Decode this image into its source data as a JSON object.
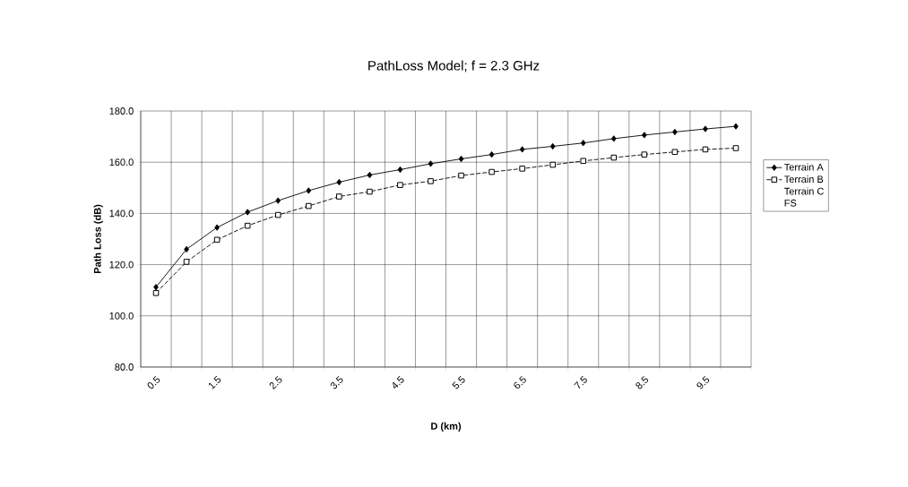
{
  "chart_data": {
    "type": "line",
    "title": "PathLoss Model; f = 2.3 GHz",
    "xlabel": "D (km)",
    "ylabel": "Path Loss (dB)",
    "categories": [
      "0.5",
      null,
      "1.5",
      null,
      "2.5",
      null,
      "3.5",
      null,
      "4.5",
      null,
      "5.5",
      null,
      "6.5",
      null,
      "7.5",
      null,
      "8.5",
      null,
      "9.5",
      null
    ],
    "series": [
      {
        "name": "Terrain A",
        "color": "#000000",
        "marker": "diamond",
        "line_style": "solid",
        "values": [
          111.2,
          126.0,
          134.5,
          140.5,
          145.0,
          148.9,
          152.2,
          155.0,
          157.1,
          159.4,
          161.3,
          163.0,
          165.0,
          166.2,
          167.5,
          169.2,
          170.6,
          171.8,
          173.0,
          174.0
        ]
      },
      {
        "name": "Terrain B",
        "color": "#000000",
        "marker": "square",
        "line_style": "dashed",
        "values": [
          108.9,
          121.1,
          129.7,
          135.2,
          139.4,
          142.9,
          146.6,
          148.5,
          151.1,
          152.6,
          154.8,
          156.2,
          157.5,
          159.0,
          160.5,
          161.8,
          163.0,
          164.0,
          165.0,
          165.5
        ]
      },
      {
        "name": "Terrain C",
        "values": [
          null,
          null,
          null,
          null,
          null,
          null,
          null,
          null,
          null,
          null,
          null,
          null,
          null,
          null,
          null,
          null,
          null,
          null,
          null,
          null
        ]
      },
      {
        "name": "FS",
        "values": [
          null,
          null,
          null,
          null,
          null,
          null,
          null,
          null,
          null,
          null,
          null,
          null,
          null,
          null,
          null,
          null,
          null,
          null,
          null,
          null
        ]
      }
    ],
    "ylim": [
      80,
      180
    ],
    "yticks": [
      {
        "value": 80,
        "label": "80.0"
      },
      {
        "value": 100,
        "label": "100.0"
      },
      {
        "value": 120,
        "label": "120.0"
      },
      {
        "value": 140,
        "label": "140.0"
      },
      {
        "value": 160,
        "label": "160.0"
      },
      {
        "value": 180,
        "label": "180.0"
      }
    ],
    "grid": true,
    "legend": "right"
  }
}
